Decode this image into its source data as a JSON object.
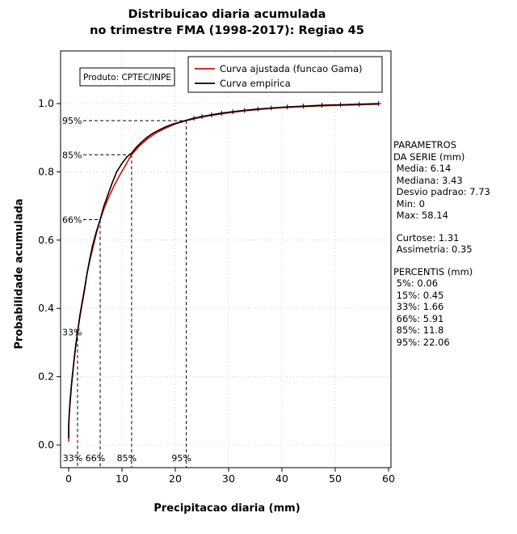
{
  "title": {
    "line1": "Distribuicao diaria acumulada",
    "line2": "no trimestre FMA (1998-2017): Regiao 45"
  },
  "product_box": {
    "label": "Produto: CPTEC/INPE"
  },
  "chart_data": {
    "type": "line",
    "title": "Distribuicao diaria acumulada no trimestre FMA (1998-2017): Regiao 45",
    "xlabel": "Precipitacao diaria (mm)",
    "ylabel": "Probabilidade acumulada",
    "xlim": [
      0,
      60
    ],
    "ylim": [
      0,
      1.0
    ],
    "x_ticks": [
      0,
      10,
      20,
      30,
      40,
      50,
      60
    ],
    "y_ticks": [
      0,
      0.2,
      0.4,
      0.6,
      0.8,
      1.0
    ],
    "grid": true,
    "legend_position": "top",
    "legend": [
      {
        "label": "Curva ajustada (funcao Gama)",
        "color": "#ee0000"
      },
      {
        "label": "Curva empirica",
        "color": "#000000"
      }
    ],
    "series": [
      {
        "name": "Curva ajustada (funcao Gama)",
        "color": "#ee0000",
        "x": [
          0.02,
          0.02,
          0.1,
          0.25,
          0.45,
          0.7,
          1.0,
          1.3,
          1.66,
          2.1,
          2.6,
          3.0,
          3.43,
          3.9,
          4.5,
          5.2,
          5.91,
          6.7,
          7.5,
          8.4,
          9.4,
          10.5,
          11.8,
          13.2,
          14.8,
          16.5,
          18.3,
          20.1,
          22.06,
          24.5,
          27,
          30,
          33,
          36.5,
          40,
          44,
          48,
          52,
          58.14
        ],
        "y": [
          0.01,
          0.05,
          0.09,
          0.13,
          0.165,
          0.205,
          0.245,
          0.285,
          0.33,
          0.375,
          0.42,
          0.455,
          0.5,
          0.535,
          0.575,
          0.62,
          0.66,
          0.695,
          0.725,
          0.755,
          0.785,
          0.815,
          0.85,
          0.875,
          0.897,
          0.915,
          0.929,
          0.941,
          0.95,
          0.959,
          0.966,
          0.973,
          0.979,
          0.984,
          0.988,
          0.991,
          0.9935,
          0.9955,
          0.998
        ]
      },
      {
        "name": "Curva empirica",
        "color": "#000000",
        "x": [
          0,
          0,
          0.15,
          0.3,
          0.5,
          0.75,
          1.05,
          1.35,
          1.66,
          2.1,
          2.6,
          3.0,
          3.43,
          3.9,
          4.5,
          5.2,
          5.91,
          6.6,
          7.3,
          8.1,
          9.0,
          10.0,
          11.0,
          11.8,
          12.7,
          13.6,
          14.6,
          15.7,
          16.9,
          18.2,
          19.6,
          21,
          22.06,
          23.5,
          25,
          26.8,
          28.7,
          30.8,
          33,
          35.5,
          38,
          41,
          44,
          47.5,
          51,
          54.5,
          58.14
        ],
        "y": [
          0.02,
          0.06,
          0.1,
          0.13,
          0.17,
          0.21,
          0.255,
          0.295,
          0.33,
          0.38,
          0.425,
          0.46,
          0.5,
          0.54,
          0.585,
          0.625,
          0.66,
          0.7,
          0.73,
          0.765,
          0.8,
          0.825,
          0.845,
          0.855,
          0.872,
          0.886,
          0.9,
          0.912,
          0.922,
          0.932,
          0.94,
          0.946,
          0.951,
          0.957,
          0.962,
          0.967,
          0.972,
          0.976,
          0.98,
          0.984,
          0.987,
          0.99,
          0.9925,
          0.995,
          0.9965,
          0.998,
          1.0
        ]
      }
    ],
    "percentile_guides": [
      {
        "label": "33%",
        "x": 1.66,
        "p": 0.33
      },
      {
        "label": "66%",
        "x": 5.91,
        "p": 0.66
      },
      {
        "label": "85%",
        "x": 11.8,
        "p": 0.85
      },
      {
        "label": "95%",
        "x": 22.06,
        "p": 0.95
      }
    ],
    "max_value": 58.14
  },
  "stats_panel": {
    "blocks": [
      {
        "lines": [
          "PARAMETROS",
          "DA SERIE (mm)",
          " Media: 6.14",
          " Mediana: 3.43",
          " Desvio padrao: 7.73",
          " Min: 0",
          " Max: 58.14"
        ]
      },
      {
        "lines": [
          " Curtose: 1.31",
          " Assimetria: 0.35"
        ]
      },
      {
        "lines": [
          "PERCENTIS (mm)",
          " 5%: 0.06",
          " 15%: 0.45",
          " 33%: 1.66",
          " 66%: 5.91",
          " 85%: 11.8",
          " 95%: 22.06"
        ]
      }
    ]
  }
}
